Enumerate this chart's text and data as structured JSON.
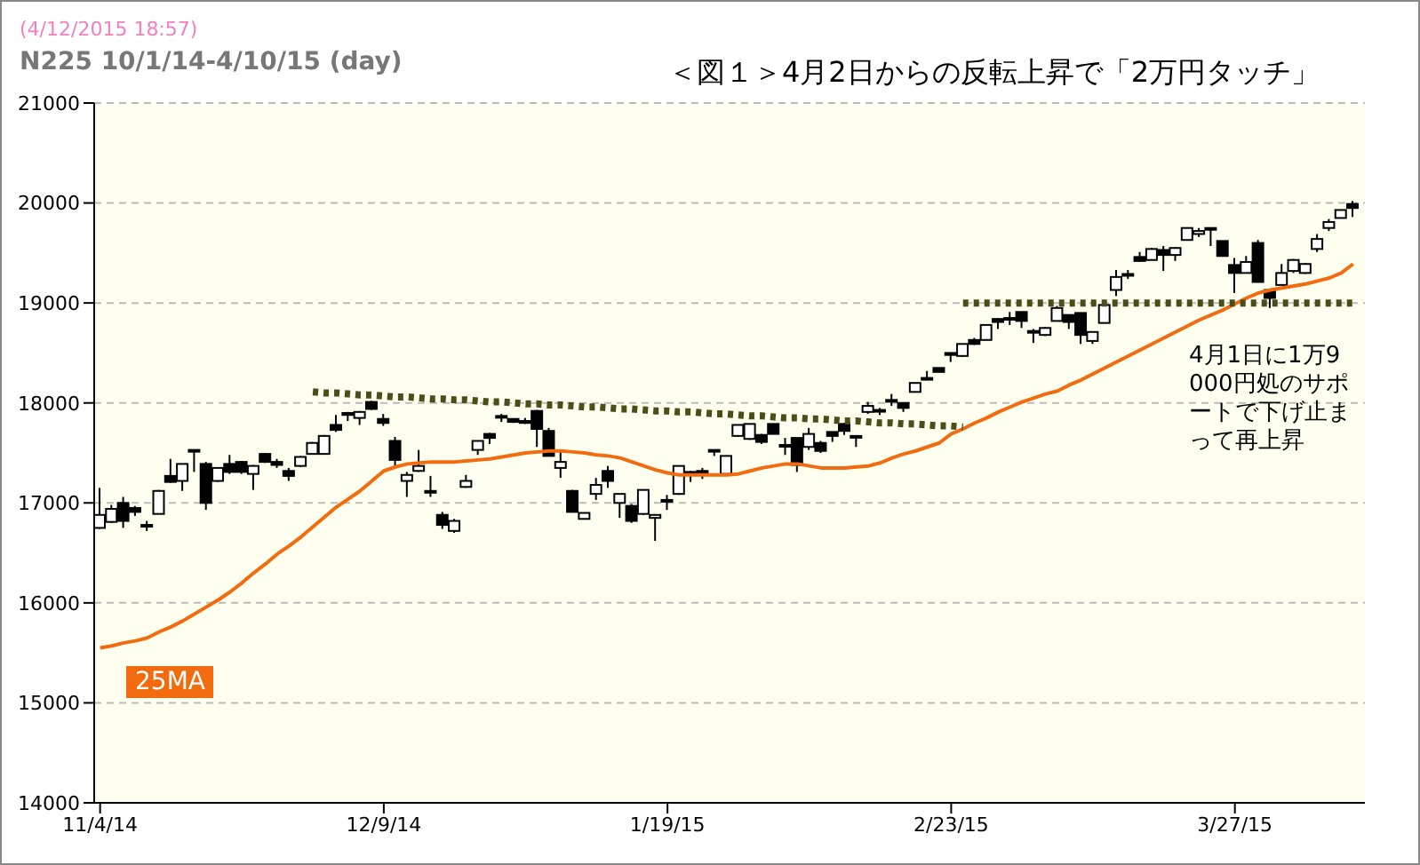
{
  "chart_data": {
    "type": "candlestick",
    "title": "＜図１＞4月2日からの反転上昇で「2万円タッチ」",
    "subtitle": "N225  10/1/14-4/10/15 (day)",
    "annotations": [
      "(4/12/2015 18:57)",
      "4月1日に1万9000円処のサポートで下げ止まって再上昇"
    ],
    "color": "#000000",
    "categories": [
      "11/4/14",
      null,
      null,
      null,
      null,
      null,
      null,
      null,
      null,
      null,
      null,
      null,
      null,
      null,
      null,
      null,
      null,
      null,
      null,
      null,
      null,
      null,
      null,
      null,
      "12/9/14",
      null,
      null,
      null,
      null,
      null,
      null,
      null,
      null,
      null,
      null,
      null,
      null,
      null,
      null,
      null,
      null,
      null,
      null,
      null,
      null,
      null,
      null,
      null,
      "1/19/15",
      null,
      null,
      null,
      null,
      null,
      null,
      null,
      null,
      null,
      null,
      null,
      null,
      null,
      null,
      null,
      null,
      null,
      null,
      null,
      null,
      null,
      null,
      null,
      "2/23/15",
      null,
      null,
      null,
      null,
      null,
      null,
      null,
      null,
      null,
      null,
      null,
      null,
      null,
      null,
      null,
      null,
      null,
      null,
      null,
      null,
      null,
      null,
      null,
      "3/27/15",
      null,
      null,
      null,
      null,
      null,
      null,
      null,
      null,
      null,
      null
    ],
    "ohlc": [
      [
        16750,
        17150,
        16740,
        16880
      ],
      [
        16810,
        16980,
        16800,
        16940
      ],
      [
        17000,
        17060,
        16750,
        16820
      ],
      [
        16950,
        16970,
        16870,
        16910
      ],
      [
        16780,
        16820,
        16720,
        16780
      ],
      [
        16890,
        17130,
        16890,
        17120
      ],
      [
        17270,
        17440,
        17200,
        17210
      ],
      [
        17220,
        17390,
        17120,
        17390
      ],
      [
        17530,
        17530,
        17310,
        17520
      ],
      [
        17390,
        17410,
        16930,
        17000
      ],
      [
        17220,
        17350,
        17210,
        17350
      ],
      [
        17390,
        17480,
        17290,
        17310
      ],
      [
        17410,
        17420,
        17290,
        17310
      ],
      [
        17290,
        17380,
        17130,
        17370
      ],
      [
        17490,
        17500,
        17400,
        17410
      ],
      [
        17410,
        17440,
        17350,
        17380
      ],
      [
        17320,
        17350,
        17220,
        17270
      ],
      [
        17370,
        17470,
        17360,
        17460
      ],
      [
        17490,
        17610,
        17490,
        17600
      ],
      [
        17490,
        17680,
        17490,
        17670
      ],
      [
        17780,
        17880,
        17710,
        17730
      ],
      [
        17900,
        17910,
        17820,
        17880
      ],
      [
        17850,
        17920,
        17780,
        17910
      ],
      [
        18010,
        18020,
        17930,
        17940
      ],
      [
        17840,
        17890,
        17770,
        17800
      ],
      [
        17620,
        17660,
        17350,
        17430
      ],
      [
        17220,
        17310,
        17060,
        17280
      ],
      [
        17320,
        17530,
        17310,
        17370
      ],
      [
        17120,
        17270,
        17060,
        17120
      ],
      [
        16880,
        16910,
        16740,
        16780
      ],
      [
        16720,
        16840,
        16700,
        16820
      ],
      [
        17160,
        17280,
        17150,
        17220
      ],
      [
        17530,
        17620,
        17480,
        17620
      ],
      [
        17690,
        17700,
        17590,
        17650
      ],
      [
        17870,
        17890,
        17810,
        17860
      ],
      [
        17840,
        17840,
        17800,
        17810
      ],
      [
        17820,
        17850,
        17790,
        17800
      ],
      [
        17920,
        17930,
        17560,
        17740
      ],
      [
        17720,
        17750,
        17470,
        17470
      ],
      [
        17350,
        17530,
        17250,
        17410
      ],
      [
        17120,
        17130,
        16910,
        16910
      ],
      [
        16840,
        16900,
        16840,
        16900
      ],
      [
        17090,
        17250,
        17030,
        17180
      ],
      [
        17320,
        17370,
        17150,
        17220
      ],
      [
        17000,
        17090,
        16850,
        17090
      ],
      [
        16970,
        16990,
        16800,
        16820
      ],
      [
        16890,
        17130,
        16880,
        17130
      ],
      [
        16850,
        16880,
        16620,
        16880
      ],
      [
        17030,
        17080,
        16930,
        17030
      ],
      [
        17090,
        17370,
        17080,
        17370
      ],
      [
        17310,
        17320,
        17210,
        17280
      ],
      [
        17320,
        17350,
        17240,
        17320
      ],
      [
        17530,
        17530,
        17470,
        17520
      ],
      [
        17290,
        17470,
        17290,
        17470
      ],
      [
        17670,
        17780,
        17660,
        17780
      ],
      [
        17640,
        17790,
        17630,
        17790
      ],
      [
        17680,
        17690,
        17590,
        17610
      ],
      [
        17790,
        17790,
        17690,
        17690
      ],
      [
        17580,
        17650,
        17480,
        17580
      ],
      [
        17650,
        17650,
        17310,
        17380
      ],
      [
        17560,
        17750,
        17530,
        17690
      ],
      [
        17600,
        17620,
        17500,
        17520
      ],
      [
        17710,
        17710,
        17610,
        17670
      ],
      [
        17790,
        17800,
        17680,
        17720
      ],
      [
        17670,
        17670,
        17560,
        17660
      ],
      [
        17910,
        18010,
        17890,
        17970
      ],
      [
        17930,
        17950,
        17880,
        17930
      ],
      [
        18030,
        18090,
        17970,
        18030
      ],
      [
        18000,
        18000,
        17910,
        17950
      ],
      [
        18110,
        18200,
        18110,
        18200
      ],
      [
        18250,
        18320,
        18250,
        18250
      ],
      [
        18350,
        18350,
        18310,
        18310
      ],
      [
        18500,
        18500,
        18410,
        18480
      ],
      [
        18470,
        18590,
        18460,
        18590
      ],
      [
        18630,
        18650,
        18580,
        18590
      ],
      [
        18630,
        18780,
        18630,
        18780
      ],
      [
        18840,
        18850,
        18740,
        18810
      ],
      [
        18850,
        18910,
        18780,
        18840
      ],
      [
        18910,
        18910,
        18750,
        18820
      ],
      [
        18720,
        18740,
        18600,
        18720
      ],
      [
        18680,
        18760,
        18670,
        18750
      ],
      [
        18820,
        18970,
        18820,
        18950
      ],
      [
        18880,
        18880,
        18740,
        18810
      ],
      [
        18900,
        18900,
        18590,
        18680
      ],
      [
        18620,
        18710,
        18590,
        18710
      ],
      [
        18800,
        18980,
        18800,
        18980
      ],
      [
        19130,
        19330,
        19070,
        19260
      ],
      [
        19290,
        19330,
        19240,
        19290
      ],
      [
        19460,
        19510,
        19410,
        19420
      ],
      [
        19430,
        19550,
        19430,
        19540
      ],
      [
        19530,
        19570,
        19320,
        19480
      ],
      [
        19480,
        19560,
        19420,
        19550
      ],
      [
        19630,
        19750,
        19630,
        19750
      ],
      [
        19690,
        19750,
        19660,
        19720
      ],
      [
        19750,
        19750,
        19570,
        19740
      ],
      [
        19620,
        19620,
        19470,
        19470
      ],
      [
        19380,
        19450,
        19100,
        19300
      ],
      [
        19300,
        19470,
        19300,
        19410
      ],
      [
        19600,
        19630,
        19210,
        19210
      ],
      [
        19130,
        19130,
        18950,
        19050
      ],
      [
        19180,
        19390,
        19180,
        19300
      ],
      [
        19320,
        19440,
        19300,
        19430
      ],
      [
        19300,
        19400,
        19290,
        19390
      ],
      [
        19540,
        19690,
        19510,
        19640
      ],
      [
        19750,
        19840,
        19720,
        19810
      ],
      [
        19850,
        19930,
        19850,
        19930
      ],
      [
        19990,
        20020,
        19860,
        19950
      ]
    ],
    "series": [
      {
        "name": "25MA",
        "type": "line",
        "color": "#f26b0f",
        "values": [
          15550,
          15570,
          15600,
          15620,
          15650,
          15710,
          15760,
          15820,
          15890,
          15960,
          16030,
          16110,
          16200,
          16300,
          16390,
          16490,
          16570,
          16660,
          16760,
          16860,
          16960,
          17040,
          17120,
          17220,
          17320,
          17360,
          17390,
          17400,
          17410,
          17410,
          17410,
          17420,
          17430,
          17440,
          17460,
          17480,
          17500,
          17510,
          17520,
          17520,
          17510,
          17500,
          17480,
          17470,
          17450,
          17410,
          17370,
          17330,
          17300,
          17280,
          17280,
          17280,
          17280,
          17280,
          17290,
          17320,
          17350,
          17370,
          17390,
          17390,
          17370,
          17350,
          17350,
          17350,
          17360,
          17370,
          17400,
          17450,
          17490,
          17520,
          17560,
          17600,
          17690,
          17740,
          17800,
          17850,
          17910,
          17960,
          18010,
          18050,
          18090,
          18120,
          18180,
          18230,
          18290,
          18350,
          18410,
          18470,
          18530,
          18590,
          18650,
          18710,
          18770,
          18830,
          18880,
          18930,
          18990,
          19050,
          19100,
          19130,
          19150,
          19170,
          19190,
          19220,
          19250,
          19300,
          19390
        ]
      },
      {
        "type": "line",
        "color": "#4d4d1a",
        "line_style": "dotted",
        "values": [
          null,
          null,
          null,
          null,
          null,
          null,
          null,
          null,
          null,
          null,
          null,
          null,
          null,
          null,
          null,
          null,
          null,
          null,
          18110,
          18100,
          18100,
          18090,
          18080,
          18080,
          18070,
          18060,
          18060,
          18050,
          18040,
          18040,
          18030,
          18030,
          18020,
          18010,
          18010,
          18000,
          17990,
          17990,
          17980,
          17980,
          17970,
          17960,
          17960,
          17950,
          17940,
          17940,
          17930,
          17920,
          17920,
          17910,
          17910,
          17900,
          17890,
          17890,
          17880,
          17870,
          17870,
          17860,
          17850,
          17850,
          17840,
          17840,
          17830,
          17820,
          17820,
          17810,
          17800,
          17800,
          17790,
          17790,
          17780,
          17770,
          17770,
          17760,
          null,
          null,
          null,
          null,
          null,
          null,
          null,
          null,
          null,
          null,
          null,
          null,
          null,
          null,
          null,
          null,
          null,
          null,
          null,
          null,
          null,
          null,
          null,
          null,
          null,
          null,
          null,
          null,
          null,
          null,
          null,
          null,
          null
        ]
      },
      {
        "type": "line",
        "color": "#4d4d1a",
        "line_style": "dotted",
        "values": [
          null,
          null,
          null,
          null,
          null,
          null,
          null,
          null,
          null,
          null,
          null,
          null,
          null,
          null,
          null,
          null,
          null,
          null,
          null,
          null,
          null,
          null,
          null,
          null,
          null,
          null,
          null,
          null,
          null,
          null,
          null,
          null,
          null,
          null,
          null,
          null,
          null,
          null,
          null,
          null,
          null,
          null,
          null,
          null,
          null,
          null,
          null,
          null,
          null,
          null,
          null,
          null,
          null,
          null,
          null,
          null,
          null,
          null,
          null,
          null,
          null,
          null,
          null,
          null,
          null,
          null,
          null,
          null,
          null,
          null,
          null,
          null,
          null,
          19000,
          19000,
          19000,
          19000,
          19000,
          19000,
          19000,
          19000,
          19000,
          19000,
          19000,
          19000,
          19000,
          19000,
          19000,
          19000,
          19000,
          19000,
          19000,
          19000,
          19000,
          19000,
          19000,
          19000,
          19000,
          19000,
          19000,
          19000,
          19000,
          19000,
          19000,
          19000,
          19000,
          19000
        ]
      }
    ],
    "ylim": [
      14000,
      21000
    ],
    "yticks": [
      14000,
      15000,
      16000,
      17000,
      18000,
      19000,
      20000,
      21000
    ],
    "grid": "y"
  }
}
